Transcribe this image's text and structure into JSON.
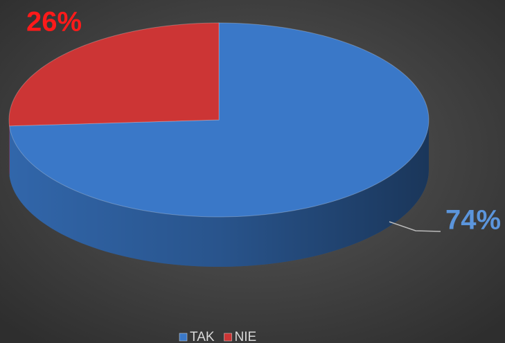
{
  "chart_data": {
    "type": "pie3d",
    "categories": [
      "TAK",
      "NIE"
    ],
    "values": [
      74,
      26
    ],
    "value_labels": [
      "74%",
      "26%"
    ],
    "colors": [
      "#3a78c8",
      "#cc3535"
    ],
    "legend": "bottom"
  }
}
